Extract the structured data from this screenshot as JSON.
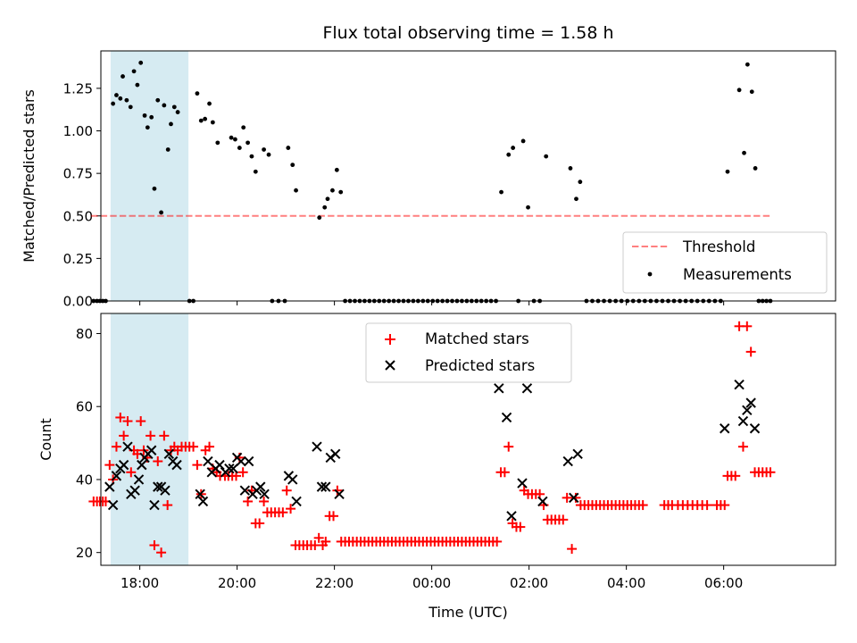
{
  "chart_data": {
    "type": "scatter",
    "title": "Flux total observing time = 1.58 h",
    "x_unit": "hours since 00:00 UTC (previous evening negative)",
    "x_range": [
      -6.8,
      8.3
    ],
    "x_ticks": [
      -6,
      -4,
      -2,
      0,
      2,
      4,
      6
    ],
    "x_tick_labels": [
      "18:00",
      "20:00",
      "22:00",
      "00:00",
      "02:00",
      "04:00",
      "06:00"
    ],
    "xlabel": "Time (UTC)",
    "shaded_interval": [
      -6.6,
      -5.0
    ],
    "top_panel": {
      "ylabel": "Matched/Predicted stars",
      "ylim": [
        0,
        1.47
      ],
      "y_ticks": [
        "0.00",
        "0.25",
        "0.50",
        "0.75",
        "1.00",
        "1.25"
      ],
      "threshold": 0.5,
      "threshold_range": [
        -7.0,
        7.0
      ],
      "legend": [
        "Threshold",
        "Measurements"
      ],
      "measurements": [
        [
          -6.55,
          1.16
        ],
        [
          -6.48,
          1.21
        ],
        [
          -6.4,
          1.19
        ],
        [
          -6.35,
          1.32
        ],
        [
          -6.27,
          1.18
        ],
        [
          -6.19,
          1.14
        ],
        [
          -6.12,
          1.35
        ],
        [
          -6.05,
          1.27
        ],
        [
          -5.98,
          1.4
        ],
        [
          -5.9,
          1.09
        ],
        [
          -5.84,
          1.02
        ],
        [
          -5.76,
          1.08
        ],
        [
          -5.7,
          0.66
        ],
        [
          -5.63,
          1.18
        ],
        [
          -5.56,
          0.52
        ],
        [
          -5.5,
          1.15
        ],
        [
          -5.42,
          0.89
        ],
        [
          -5.36,
          1.04
        ],
        [
          -5.29,
          1.14
        ],
        [
          -5.22,
          1.11
        ],
        [
          -4.82,
          1.22
        ],
        [
          -4.74,
          1.06
        ],
        [
          -4.66,
          1.07
        ],
        [
          -4.57,
          1.16
        ],
        [
          -4.5,
          1.05
        ],
        [
          -4.4,
          0.93
        ],
        [
          -4.12,
          0.96
        ],
        [
          -4.04,
          0.95
        ],
        [
          -3.95,
          0.9
        ],
        [
          -3.87,
          1.02
        ],
        [
          -3.78,
          0.93
        ],
        [
          -3.7,
          0.85
        ],
        [
          -3.62,
          0.76
        ],
        [
          -3.45,
          0.89
        ],
        [
          -3.35,
          0.86
        ],
        [
          -2.95,
          0.9
        ],
        [
          -2.86,
          0.8
        ],
        [
          -2.79,
          0.65
        ],
        [
          -2.31,
          0.49
        ],
        [
          -2.2,
          0.55
        ],
        [
          -2.14,
          0.6
        ],
        [
          -2.04,
          0.65
        ],
        [
          -1.95,
          0.77
        ],
        [
          -1.87,
          0.64
        ],
        [
          1.43,
          0.64
        ],
        [
          1.58,
          0.86
        ],
        [
          1.67,
          0.9
        ],
        [
          1.88,
          0.94
        ],
        [
          1.98,
          0.55
        ],
        [
          2.35,
          0.85
        ],
        [
          2.85,
          0.78
        ],
        [
          2.97,
          0.6
        ],
        [
          3.05,
          0.7
        ],
        [
          6.08,
          0.76
        ],
        [
          6.32,
          1.24
        ],
        [
          6.42,
          0.87
        ],
        [
          6.49,
          1.39
        ],
        [
          6.58,
          1.23
        ],
        [
          6.65,
          0.78
        ]
      ],
      "zero_measurements": [
        -6.95,
        -6.88,
        -6.82,
        -6.76,
        -6.7,
        -4.98,
        -4.9,
        -3.28,
        -3.15,
        -3.02,
        -1.78,
        -1.68,
        -1.58,
        -1.48,
        -1.38,
        -1.28,
        -1.18,
        -1.08,
        -0.98,
        -0.88,
        -0.78,
        -0.68,
        -0.58,
        -0.48,
        -0.38,
        -0.28,
        -0.18,
        -0.08,
        0.02,
        0.12,
        0.22,
        0.32,
        0.42,
        0.52,
        0.62,
        0.72,
        0.82,
        0.92,
        1.02,
        1.12,
        1.22,
        1.32,
        1.78,
        2.1,
        2.22,
        3.18,
        3.3,
        3.42,
        3.54,
        3.66,
        3.78,
        3.9,
        4.02,
        4.14,
        4.26,
        4.38,
        4.5,
        4.62,
        4.74,
        4.86,
        4.98,
        5.1,
        5.22,
        5.34,
        5.46,
        5.58,
        5.7,
        5.82,
        5.94,
        6.72,
        6.8,
        6.88,
        6.96
      ]
    },
    "bottom_panel": {
      "ylabel": "Count",
      "ylim": [
        16.5,
        85.5
      ],
      "y_ticks": [
        "20",
        "40",
        "60",
        "80"
      ],
      "legend": [
        "Matched stars",
        "Predicted stars"
      ],
      "matched_stars": [
        [
          -6.95,
          34
        ],
        [
          -6.88,
          34
        ],
        [
          -6.82,
          34
        ],
        [
          -6.76,
          34
        ],
        [
          -6.7,
          34
        ],
        [
          -6.62,
          44
        ],
        [
          -6.55,
          40
        ],
        [
          -6.48,
          49
        ],
        [
          -6.4,
          57
        ],
        [
          -6.33,
          52
        ],
        [
          -6.25,
          56
        ],
        [
          -6.18,
          42
        ],
        [
          -6.12,
          48
        ],
        [
          -6.05,
          47
        ],
        [
          -5.98,
          56
        ],
        [
          -5.92,
          48
        ],
        [
          -5.85,
          46
        ],
        [
          -5.78,
          52
        ],
        [
          -5.7,
          22
        ],
        [
          -5.63,
          45
        ],
        [
          -5.56,
          20
        ],
        [
          -5.5,
          52
        ],
        [
          -5.43,
          33
        ],
        [
          -5.36,
          48
        ],
        [
          -5.29,
          49
        ],
        [
          -5.22,
          48
        ],
        [
          -5.14,
          49
        ],
        [
          -5.06,
          49
        ],
        [
          -4.98,
          49
        ],
        [
          -4.9,
          49
        ],
        [
          -4.82,
          44
        ],
        [
          -4.74,
          36
        ],
        [
          -4.65,
          48
        ],
        [
          -4.57,
          49
        ],
        [
          -4.5,
          43
        ],
        [
          -4.42,
          42
        ],
        [
          -4.35,
          41
        ],
        [
          -4.25,
          41
        ],
        [
          -4.18,
          41
        ],
        [
          -4.1,
          41
        ],
        [
          -4.02,
          41
        ],
        [
          -3.95,
          46
        ],
        [
          -3.88,
          42
        ],
        [
          -3.78,
          34
        ],
        [
          -3.7,
          37
        ],
        [
          -3.62,
          28
        ],
        [
          -3.54,
          28
        ],
        [
          -3.45,
          34
        ],
        [
          -3.38,
          31
        ],
        [
          -3.3,
          31
        ],
        [
          -3.22,
          31
        ],
        [
          -3.14,
          31
        ],
        [
          -3.06,
          31
        ],
        [
          -2.98,
          37
        ],
        [
          -2.9,
          32
        ],
        [
          -2.8,
          22
        ],
        [
          -2.72,
          22
        ],
        [
          -2.64,
          22
        ],
        [
          -2.56,
          22
        ],
        [
          -2.48,
          22
        ],
        [
          -2.4,
          22
        ],
        [
          -2.32,
          24
        ],
        [
          -2.24,
          22
        ],
        [
          -2.18,
          23
        ],
        [
          -2.1,
          30
        ],
        [
          -2.02,
          30
        ],
        [
          -1.94,
          37
        ],
        [
          -1.86,
          23
        ],
        [
          -1.78,
          23
        ],
        [
          -1.7,
          23
        ],
        [
          -1.62,
          23
        ],
        [
          -1.54,
          23
        ],
        [
          -1.46,
          23
        ],
        [
          -1.38,
          23
        ],
        [
          -1.3,
          23
        ],
        [
          -1.22,
          23
        ],
        [
          -1.14,
          23
        ],
        [
          -1.06,
          23
        ],
        [
          -0.98,
          23
        ],
        [
          -0.9,
          23
        ],
        [
          -0.82,
          23
        ],
        [
          -0.74,
          23
        ],
        [
          -0.66,
          23
        ],
        [
          -0.58,
          23
        ],
        [
          -0.5,
          23
        ],
        [
          -0.42,
          23
        ],
        [
          -0.34,
          23
        ],
        [
          -0.26,
          23
        ],
        [
          -0.18,
          23
        ],
        [
          -0.1,
          23
        ],
        [
          -0.02,
          23
        ],
        [
          0.06,
          23
        ],
        [
          0.14,
          23
        ],
        [
          0.22,
          23
        ],
        [
          0.3,
          23
        ],
        [
          0.38,
          23
        ],
        [
          0.46,
          23
        ],
        [
          0.54,
          23
        ],
        [
          0.62,
          23
        ],
        [
          0.7,
          23
        ],
        [
          0.78,
          23
        ],
        [
          0.86,
          23
        ],
        [
          0.94,
          23
        ],
        [
          1.02,
          23
        ],
        [
          1.1,
          23
        ],
        [
          1.18,
          23
        ],
        [
          1.26,
          23
        ],
        [
          1.34,
          23
        ],
        [
          1.42,
          42
        ],
        [
          1.5,
          42
        ],
        [
          1.58,
          49
        ],
        [
          1.66,
          28
        ],
        [
          1.74,
          27
        ],
        [
          1.82,
          27
        ],
        [
          1.9,
          37
        ],
        [
          1.98,
          36
        ],
        [
          2.06,
          36
        ],
        [
          2.14,
          36
        ],
        [
          2.22,
          36
        ],
        [
          2.3,
          33
        ],
        [
          2.38,
          29
        ],
        [
          2.46,
          29
        ],
        [
          2.54,
          29
        ],
        [
          2.62,
          29
        ],
        [
          2.7,
          29
        ],
        [
          2.78,
          35
        ],
        [
          2.88,
          21
        ],
        [
          2.96,
          35
        ],
        [
          3.06,
          33
        ],
        [
          3.14,
          33
        ],
        [
          3.22,
          33
        ],
        [
          3.3,
          33
        ],
        [
          3.38,
          33
        ],
        [
          3.46,
          33
        ],
        [
          3.54,
          33
        ],
        [
          3.62,
          33
        ],
        [
          3.7,
          33
        ],
        [
          3.78,
          33
        ],
        [
          3.86,
          33
        ],
        [
          3.94,
          33
        ],
        [
          4.02,
          33
        ],
        [
          4.1,
          33
        ],
        [
          4.18,
          33
        ],
        [
          4.26,
          33
        ],
        [
          4.34,
          33
        ],
        [
          4.78,
          33
        ],
        [
          4.86,
          33
        ],
        [
          4.94,
          33
        ],
        [
          5.06,
          33
        ],
        [
          5.16,
          33
        ],
        [
          5.26,
          33
        ],
        [
          5.36,
          33
        ],
        [
          5.46,
          33
        ],
        [
          5.56,
          33
        ],
        [
          5.66,
          33
        ],
        [
          5.86,
          33
        ],
        [
          5.94,
          33
        ],
        [
          6.02,
          33
        ],
        [
          6.08,
          41
        ],
        [
          6.16,
          41
        ],
        [
          6.24,
          41
        ],
        [
          6.32,
          82
        ],
        [
          6.4,
          49
        ],
        [
          6.48,
          82
        ],
        [
          6.56,
          75
        ],
        [
          6.64,
          42
        ],
        [
          6.72,
          42
        ],
        [
          6.8,
          42
        ],
        [
          6.88,
          42
        ],
        [
          6.96,
          42
        ]
      ],
      "predicted_stars": [
        [
          -6.62,
          38
        ],
        [
          -6.55,
          33
        ],
        [
          -6.48,
          41
        ],
        [
          -6.4,
          43
        ],
        [
          -6.33,
          44
        ],
        [
          -6.25,
          49
        ],
        [
          -6.18,
          36
        ],
        [
          -6.1,
          37
        ],
        [
          -6.02,
          40
        ],
        [
          -5.96,
          44
        ],
        [
          -5.9,
          46
        ],
        [
          -5.83,
          47
        ],
        [
          -5.76,
          48
        ],
        [
          -5.7,
          33
        ],
        [
          -5.63,
          38
        ],
        [
          -5.56,
          38
        ],
        [
          -5.48,
          37
        ],
        [
          -5.4,
          47
        ],
        [
          -5.32,
          45
        ],
        [
          -5.24,
          44
        ],
        [
          -4.76,
          36
        ],
        [
          -4.7,
          34
        ],
        [
          -4.6,
          45
        ],
        [
          -4.52,
          42
        ],
        [
          -4.44,
          43
        ],
        [
          -4.36,
          44
        ],
        [
          -4.24,
          42
        ],
        [
          -4.16,
          43
        ],
        [
          -4.08,
          43
        ],
        [
          -4.0,
          46
        ],
        [
          -3.92,
          45
        ],
        [
          -3.84,
          37
        ],
        [
          -3.76,
          45
        ],
        [
          -3.68,
          36
        ],
        [
          -3.6,
          37
        ],
        [
          -3.52,
          38
        ],
        [
          -3.44,
          36
        ],
        [
          -2.94,
          41
        ],
        [
          -2.86,
          40
        ],
        [
          -2.78,
          34
        ],
        [
          -2.36,
          49
        ],
        [
          -2.26,
          38
        ],
        [
          -2.18,
          38
        ],
        [
          -2.08,
          46
        ],
        [
          -1.98,
          47
        ],
        [
          -1.9,
          36
        ],
        [
          1.38,
          65
        ],
        [
          1.54,
          57
        ],
        [
          1.64,
          30
        ],
        [
          1.86,
          39
        ],
        [
          1.96,
          65
        ],
        [
          2.28,
          34
        ],
        [
          2.8,
          45
        ],
        [
          2.92,
          35
        ],
        [
          3.0,
          47
        ],
        [
          6.02,
          54
        ],
        [
          6.32,
          66
        ],
        [
          6.4,
          56
        ],
        [
          6.48,
          59
        ],
        [
          6.56,
          61
        ],
        [
          6.64,
          54
        ]
      ]
    }
  }
}
